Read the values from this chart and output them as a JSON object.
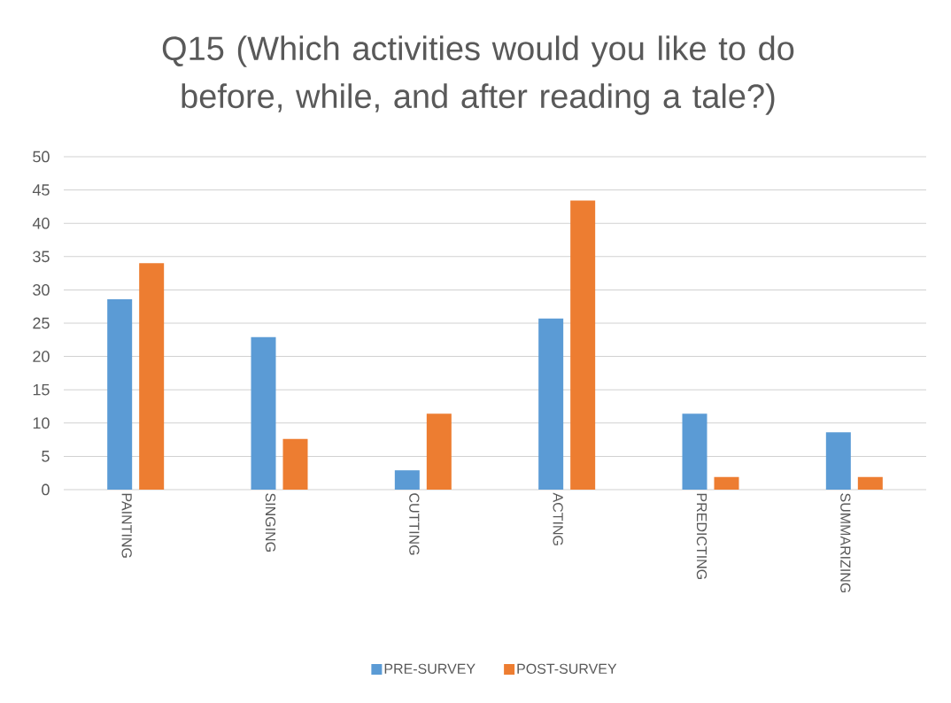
{
  "chart_data": {
    "type": "bar",
    "title": "Q15 (Which activities would you like to do before, while, and after reading a tale?)",
    "categories": [
      "PAINTING",
      "SINGING",
      "CUTTING",
      "ACTING",
      "PREDICTING",
      "SUMMARIZING"
    ],
    "series": [
      {
        "name": "PRE-SURVEY",
        "color": "#5b9bd5",
        "values": [
          28.6,
          22.9,
          2.9,
          25.7,
          11.4,
          8.6
        ]
      },
      {
        "name": "POST-SURVEY",
        "color": "#ed7d31",
        "values": [
          34.0,
          7.6,
          11.4,
          43.4,
          1.9,
          1.9
        ]
      }
    ],
    "ylim": [
      0,
      50
    ],
    "yticks": [
      0,
      5,
      10,
      15,
      20,
      25,
      30,
      35,
      40,
      45,
      50
    ],
    "grid": "y",
    "legend": "bottom"
  }
}
